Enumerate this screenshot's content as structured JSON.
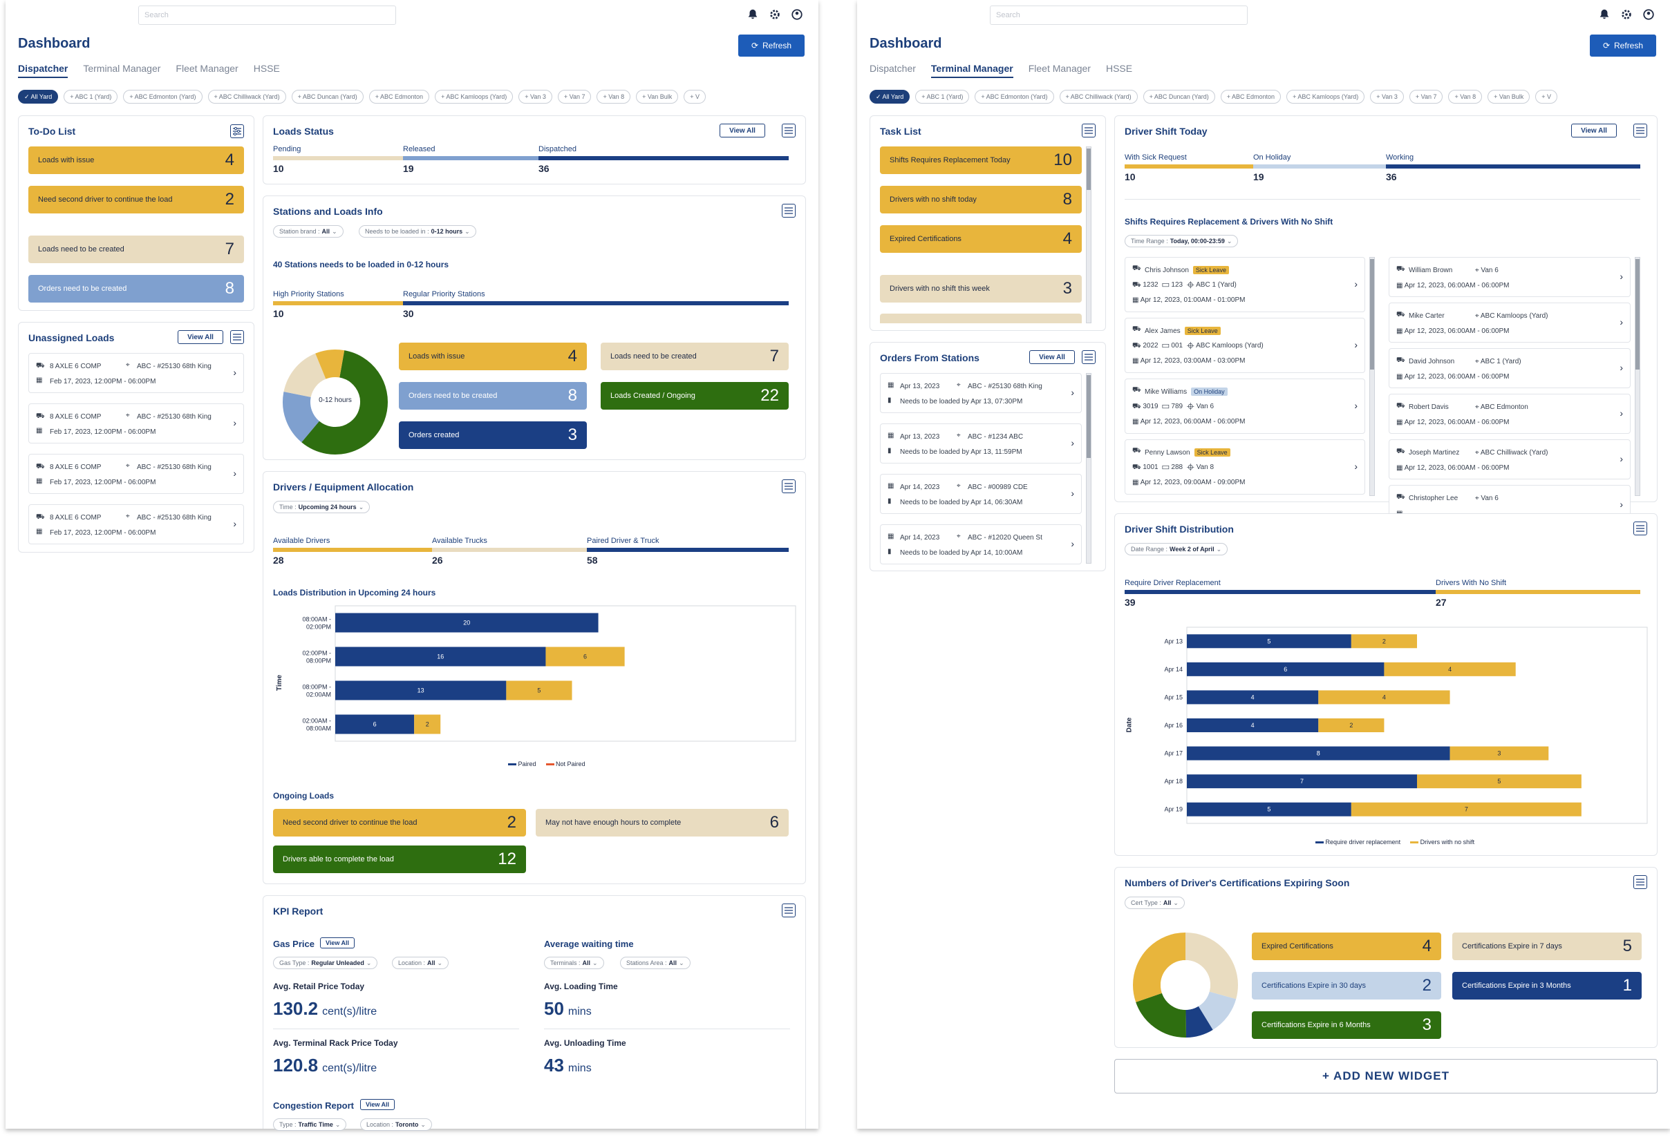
{
  "common": {
    "search_placeholder": "Search",
    "title": "Dashboard",
    "refresh": "Refresh",
    "tabs": [
      "Dispatcher",
      "Terminal Manager",
      "Fleet Manager",
      "HSSE"
    ],
    "chips": [
      "All Yard",
      "ABC 1 (Yard)",
      "ABC Edmonton (Yard)",
      "ABC Chilliwack (Yard)",
      "ABC Duncan (Yard)",
      "ABC Edmonton",
      "ABC Kamloops (Yard)",
      "Van 3",
      "Van 7",
      "Van 8",
      "Van Bulk",
      "V"
    ],
    "view_all": "View All"
  },
  "colors": {
    "navy": "#1b3f84",
    "yellow": "#e8b53c",
    "tan": "#e9dcc0",
    "green": "#2e6e10",
    "lightblue": "#7fa0cf"
  },
  "p1": {
    "todo": {
      "title": "To-Do List",
      "items": [
        {
          "label": "Loads with issue",
          "value": "4"
        },
        {
          "label": "Need second driver to continue the load",
          "value": "2"
        },
        {
          "label": "Loads need to be created",
          "value": "7"
        },
        {
          "label": "Orders need to be created",
          "value": "8"
        }
      ]
    },
    "unassigned": {
      "title": "Unassigned Loads",
      "items": [
        {
          "truck": "8 AXLE 6 COMP",
          "loc": "ABC - #25130 68th King",
          "date": "Feb 17, 2023, 12:00PM - 06:00PM"
        },
        {
          "truck": "8 AXLE 6 COMP",
          "loc": "ABC - #25130 68th King",
          "date": "Feb 17, 2023, 12:00PM - 06:00PM"
        },
        {
          "truck": "8 AXLE 6 COMP",
          "loc": "ABC - #25130 68th King",
          "date": "Feb 17, 2023, 12:00PM - 06:00PM"
        },
        {
          "truck": "8 AXLE 6 COMP",
          "loc": "ABC - #25130 68th King",
          "date": "Feb 17, 2023, 12:00PM - 06:00PM"
        }
      ]
    },
    "loads_status": {
      "title": "Loads Status",
      "labels": [
        "Pending",
        "Released",
        "Dispatched"
      ],
      "values": [
        "10",
        "19",
        "36"
      ]
    },
    "stations": {
      "title": "Stations and Loads Info",
      "f1_label": "Station brand :",
      "f1_val": "All",
      "f2_label": "Needs to be loaded in :",
      "f2_val": "0-12 hours",
      "headline": "40 Stations needs to be loaded in 0-12 hours",
      "labels": [
        "High Priority Stations",
        "Regular Priority Stations"
      ],
      "values": [
        "10",
        "30"
      ],
      "donut_center": "0-12 hours",
      "tiles": [
        {
          "label": "Loads with issue",
          "value": "4"
        },
        {
          "label": "Loads need to be created",
          "value": "7"
        },
        {
          "label": "Orders need to be created",
          "value": "8"
        },
        {
          "label": "Loads Created / Ongoing",
          "value": "22"
        },
        {
          "label": "Orders created",
          "value": "3"
        }
      ]
    },
    "drivers_equip": {
      "title": "Drivers / Equipment Allocation",
      "time_label": "Time :",
      "time_val": "Upcoming 24 hours",
      "labels": [
        "Available Drivers",
        "Available Trucks",
        "Paired Driver & Truck"
      ],
      "values": [
        "28",
        "26",
        "58"
      ],
      "dist_title": "Loads Distribution in Upcoming 24 hours",
      "ylabel": "Time",
      "legend": [
        "Paired",
        "Not Paired"
      ],
      "chart_data": {
        "type": "bar",
        "orientation": "horizontal",
        "stacked": true,
        "title": "Loads Distribution in Upcoming 24 hours",
        "ylabel": "Time",
        "categories": [
          "08:00AM - 02:00PM",
          "02:00PM - 08:00PM",
          "08:00PM - 02:00AM",
          "02:00AM - 08:00AM"
        ],
        "series": [
          {
            "name": "Paired",
            "values": [
              20,
              16,
              13,
              6
            ]
          },
          {
            "name": "Not Paired",
            "values": [
              0,
              6,
              5,
              2
            ]
          }
        ]
      },
      "ongoing_title": "Ongoing Loads",
      "ongoing": [
        {
          "label": "Need second driver to continue the load",
          "value": "2"
        },
        {
          "label": "May not have enough hours to complete",
          "value": "6"
        },
        {
          "label": "Drivers able to complete the load",
          "value": "12"
        }
      ]
    },
    "kpi": {
      "title": "KPI Report",
      "gas_title": "Gas Price",
      "gas_f1_label": "Gas Type :",
      "gas_f1_val": "Regular Unleaded",
      "gas_f2_label": "Location :",
      "gas_f2_val": "All",
      "retail_label": "Avg. Retail Price Today",
      "retail_val": "130.2",
      "retail_unit": "cent(s)/litre",
      "rack_label": "Avg. Terminal Rack Price Today",
      "rack_val": "120.8",
      "rack_unit": "cent(s)/litre",
      "wait_title": "Average waiting time",
      "wait_f1_label": "Terminals :",
      "wait_f1_val": "All",
      "wait_f2_label": "Stations Area :",
      "wait_f2_val": "All",
      "loading_label": "Avg. Loading Time",
      "loading_val": "50",
      "loading_unit": "mins",
      "unloading_label": "Avg. Unloading Time",
      "unloading_val": "43",
      "unloading_unit": "mins",
      "congestion_title": "Congestion Report",
      "cong_f1_label": "Type :",
      "cong_f1_val": "Traffic Time",
      "cong_f2_label": "Location :",
      "cong_f2_val": "Toronto"
    }
  },
  "p2": {
    "tasks": {
      "title": "Task List",
      "items": [
        {
          "label": "Shifts Requires Replacement Today",
          "value": "10"
        },
        {
          "label": "Drivers with no shift today",
          "value": "8"
        },
        {
          "label": "Expired Certifications",
          "value": "4"
        },
        {
          "label": "Drivers with no shift this week",
          "value": "3"
        }
      ]
    },
    "orders": {
      "title": "Orders From Stations",
      "items": [
        {
          "date": "Apr 13, 2023",
          "loc": "ABC - #25130 68th King",
          "need": "Needs to be loaded by Apr 13, 07:30PM"
        },
        {
          "date": "Apr 13, 2023",
          "loc": "ABC - #1234 ABC",
          "need": "Needs to be loaded by Apr 13, 11:59PM"
        },
        {
          "date": "Apr 14, 2023",
          "loc": "ABC - #00989 CDE",
          "need": "Needs to be loaded by Apr 14, 06:30AM"
        },
        {
          "date": "Apr 14, 2023",
          "loc": "ABC - #12020 Queen St",
          "need": "Needs to be loaded by Apr 14, 10:00AM"
        }
      ]
    },
    "shift_today": {
      "title": "Driver Shift Today",
      "labels": [
        "With Sick Request",
        "On Holiday",
        "Working"
      ],
      "values": [
        "10",
        "19",
        "36"
      ],
      "sub_title": "Shifts Requires Replacement &  Drivers With No Shift",
      "range_label": "Time Range :",
      "range_val": "Today, 00:00-23:59",
      "left": [
        {
          "name": "Chris Johnson",
          "badge": "Sick Leave",
          "truck": "1232",
          "trailer": "123",
          "loc": "ABC 1 (Yard)",
          "date": "Apr 12, 2023, 01:00AM - 01:00PM"
        },
        {
          "name": "Alex James",
          "badge": "Sick Leave",
          "truck": "2022",
          "trailer": "001",
          "loc": "ABC Kamloops (Yard)",
          "date": "Apr 12, 2023, 03:00AM - 03:00PM"
        },
        {
          "name": "Mike Williams",
          "badge": "On Holiday",
          "truck": "3019",
          "trailer": "789",
          "loc": "Van 6",
          "date": "Apr 12, 2023, 06:00AM - 06:00PM"
        },
        {
          "name": "Penny Lawson",
          "badge": "Sick Leave",
          "truck": "1001",
          "trailer": "288",
          "loc": "Van 8",
          "date": "Apr 12, 2023, 09:00AM - 09:00PM"
        }
      ],
      "right": [
        {
          "name": "William Brown",
          "loc": "Van 6",
          "date": "Apr 12, 2023, 06:00AM - 06:00PM"
        },
        {
          "name": "Mike Carter",
          "loc": "ABC Kamloops  (Yard)",
          "date": "Apr 12, 2023, 06:00AM - 06:00PM"
        },
        {
          "name": "David Johnson",
          "loc": "ABC 1 (Yard)",
          "date": "Apr 12, 2023, 06:00AM - 06:00PM"
        },
        {
          "name": "Robert Davis",
          "loc": "ABC Edmonton",
          "date": "Apr 12, 2023, 06:00AM - 06:00PM"
        },
        {
          "name": "Joseph Martinez",
          "loc": "ABC Chilliwack (Yard)",
          "date": "Apr 12, 2023, 06:00AM - 06:00PM"
        },
        {
          "name": "Christopher Lee",
          "loc": "Van 6",
          "date": ""
        }
      ]
    },
    "distribution": {
      "title": "Driver Shift Distribution",
      "range_label": "Date Range :",
      "range_val": "Week 2 of April",
      "labels": [
        "Require Driver Replacement",
        "Drivers With No Shift"
      ],
      "values": [
        "39",
        "27"
      ],
      "ylabel": "Date",
      "legend": [
        "Require driver replacement",
        "Drivers with no shift"
      ],
      "chart_data": {
        "type": "bar",
        "orientation": "horizontal",
        "stacked": true,
        "ylabel": "Date",
        "categories": [
          "Apr 13",
          "Apr 14",
          "Apr 15",
          "Apr 16",
          "Apr 17",
          "Apr 18",
          "Apr 19"
        ],
        "series": [
          {
            "name": "Require driver replacement",
            "values": [
              5,
              6,
              4,
              4,
              8,
              7,
              5
            ]
          },
          {
            "name": "Drivers with no shift",
            "values": [
              2,
              4,
              4,
              2,
              3,
              5,
              7
            ]
          }
        ]
      }
    },
    "certs": {
      "title": "Numbers of Driver's Certifications Expiring Soon",
      "type_label": "Cert Type :",
      "type_val": "All",
      "tiles": [
        {
          "label": "Expired Certifications",
          "value": "4"
        },
        {
          "label": "Certifications Expire in 7 days",
          "value": "5"
        },
        {
          "label": "Certifications Expire in 30 days",
          "value": "2"
        },
        {
          "label": "Certifications Expire in 3 Months",
          "value": "1"
        },
        {
          "label": "Certifications Expire in 6 Months",
          "value": "3"
        }
      ]
    },
    "add_widget": "+ ADD NEW WIDGET"
  }
}
